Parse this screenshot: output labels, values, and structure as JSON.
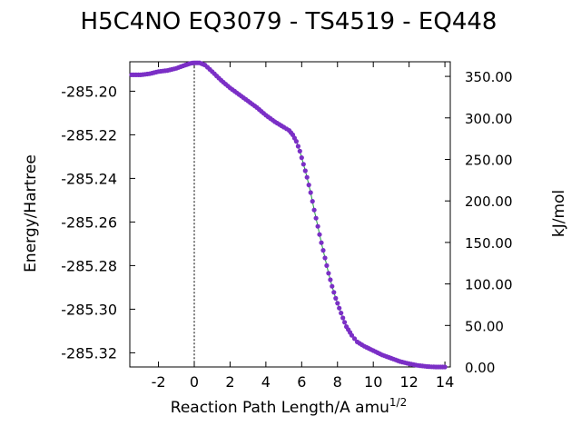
{
  "chart_data": {
    "type": "line",
    "title": "H5C4NO   EQ3079 - TS4519 - EQ448",
    "xlabel": "Reaction Path Length/A amu",
    "xlabel_superscript": "1/2",
    "ylabel": "Energy/Hartree",
    "y2label": "kJ/mol",
    "xlim": [
      -3.6,
      14.3
    ],
    "ylim": [
      -285.3265,
      -285.1865
    ],
    "y2lim": [
      0,
      367.6
    ],
    "xticks": [
      -2,
      0,
      2,
      4,
      6,
      8,
      10,
      12,
      14
    ],
    "yticks": [
      -285.2,
      -285.22,
      -285.24,
      -285.26,
      -285.28,
      -285.3,
      -285.32
    ],
    "ytick_labels": [
      "-285.20",
      "-285.22",
      "-285.24",
      "-285.26",
      "-285.28",
      "-285.30",
      "-285.32"
    ],
    "y2ticks": [
      0,
      50,
      100,
      150,
      200,
      250,
      300,
      350
    ],
    "y2tick_labels": [
      "0.00",
      "50.00",
      "100.00",
      "150.00",
      "200.00",
      "250.00",
      "300.00",
      "350.00"
    ],
    "ts_marker_x": 0,
    "grid": false,
    "line_color": "#1a9e3a",
    "marker_color": "#7b2fc6",
    "series": [
      {
        "x": [
          -3.5,
          -3.0,
          -2.5,
          -2.0,
          -1.5,
          -1.0,
          -0.5,
          -0.2,
          0.0,
          0.3,
          0.6,
          1.0,
          1.5,
          2.0,
          2.5,
          3.0,
          3.5,
          4.0,
          4.5,
          5.0,
          5.3,
          5.5,
          5.7,
          5.9,
          6.1,
          6.3,
          6.5,
          6.7,
          6.9,
          7.1,
          7.3,
          7.5,
          7.7,
          7.9,
          8.1,
          8.3,
          8.5,
          8.8,
          9.1,
          9.5,
          10.0,
          10.5,
          11.0,
          11.5,
          12.0,
          12.5,
          13.0,
          13.5,
          14.0
        ],
        "y": [
          -285.1925,
          -285.1925,
          -285.192,
          -285.191,
          -285.1905,
          -285.1895,
          -285.188,
          -285.1872,
          -285.187,
          -285.187,
          -285.188,
          -285.191,
          -285.195,
          -285.1985,
          -285.2015,
          -285.2045,
          -285.2075,
          -285.211,
          -285.214,
          -285.2165,
          -285.218,
          -285.22,
          -285.223,
          -285.2275,
          -285.2335,
          -285.2395,
          -285.2465,
          -285.2545,
          -285.262,
          -285.2695,
          -285.2765,
          -285.2835,
          -285.2895,
          -285.295,
          -285.2995,
          -285.304,
          -285.308,
          -285.312,
          -285.315,
          -285.317,
          -285.319,
          -285.321,
          -285.3225,
          -285.324,
          -285.325,
          -285.3258,
          -285.3263,
          -285.3265,
          -285.3265
        ]
      }
    ]
  }
}
